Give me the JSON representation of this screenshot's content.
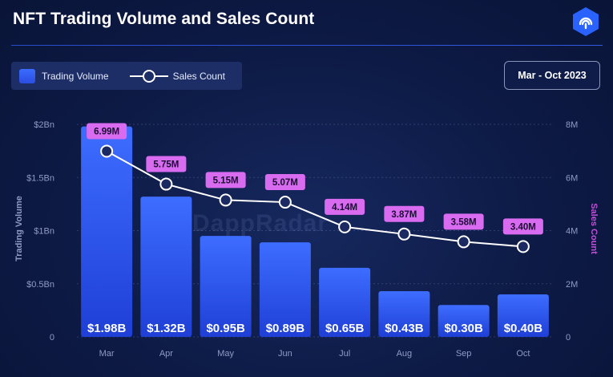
{
  "title": "NFT Trading Volume and Sales Count",
  "date_range": "Mar - Oct 2023",
  "watermark": "DappRadar",
  "colors": {
    "bar_top": "#3d6dff",
    "bar_bottom": "#1f3fd6",
    "line": "#ffffff",
    "label_bg": "#d86bf0",
    "right_axis": "#c24fd8",
    "accent": "#2f5bff"
  },
  "legend": {
    "volume_label": "Trading Volume",
    "sales_label": "Sales Count"
  },
  "chart_data": {
    "type": "bar",
    "title": "NFT Trading Volume and Sales Count",
    "categories": [
      "Mar",
      "Apr",
      "May",
      "Jun",
      "Jul",
      "Aug",
      "Sep",
      "Oct"
    ],
    "series": [
      {
        "name": "Trading Volume",
        "type": "bar",
        "unit": "USD billions",
        "values": [
          1.98,
          1.32,
          0.95,
          0.89,
          0.65,
          0.43,
          0.3,
          0.4
        ],
        "labels": [
          "$1.98B",
          "$1.32B",
          "$0.95B",
          "$0.89B",
          "$0.65B",
          "$0.43B",
          "$0.30B",
          "$0.40B"
        ],
        "axis": "left"
      },
      {
        "name": "Sales Count",
        "type": "line",
        "unit": "millions",
        "values": [
          6.99,
          5.75,
          5.15,
          5.07,
          4.14,
          3.87,
          3.58,
          3.4
        ],
        "labels": [
          "6.99M",
          "5.75M",
          "5.15M",
          "5.07M",
          "4.14M",
          "3.87M",
          "3.58M",
          "3.40M"
        ],
        "axis": "right"
      }
    ],
    "ylabel": "Trading Volume",
    "ylabel_right": "Sales Count",
    "ylim": [
      0,
      2
    ],
    "ylim_right": [
      0,
      8
    ],
    "yticks": [
      0,
      0.5,
      1,
      1.5,
      2
    ],
    "ytick_labels": [
      "0",
      "$0.5Bn",
      "$1Bn",
      "$1.5Bn",
      "$2Bn"
    ],
    "yticks_right": [
      0,
      2,
      4,
      6,
      8
    ],
    "ytick_labels_right": [
      "0",
      "2M",
      "4M",
      "6M",
      "8M"
    ],
    "grid": true,
    "legend_position": "top-left"
  }
}
